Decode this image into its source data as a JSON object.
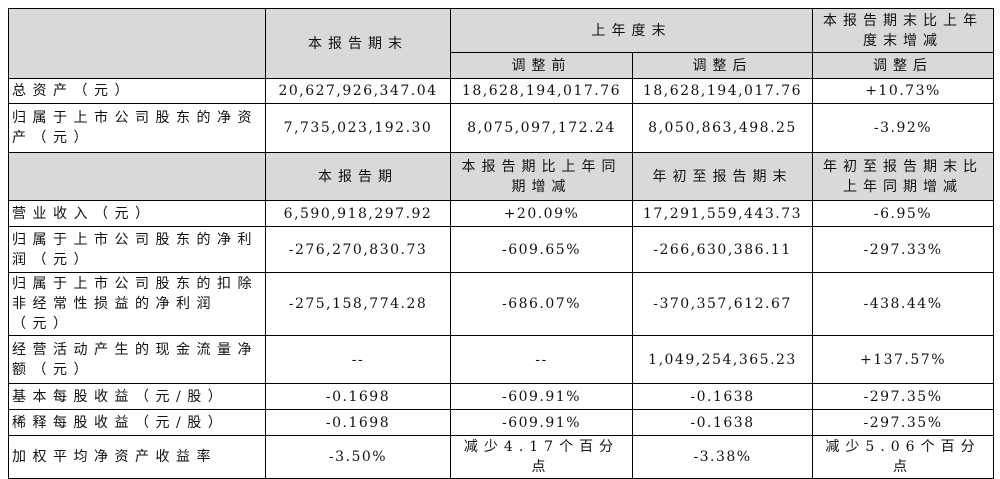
{
  "section1": {
    "col_headers": [
      "本报告期末",
      "上年度末",
      "本报告期末比上年度末增减"
    ],
    "sub_headers": [
      "调整前",
      "调整后",
      "调整后"
    ],
    "rows": [
      [
        "总资产（元）",
        "20,627,926,347.04",
        "18,628,194,017.76",
        "18,628,194,017.76",
        "+10.73%"
      ],
      [
        "归属于上市公司股东的净资产（元）",
        "7,735,023,192.30",
        "8,075,097,172.24",
        "8,050,863,498.25",
        "-3.92%"
      ]
    ]
  },
  "section2": {
    "col_headers": [
      "本报告期",
      "本报告期比上年同期增减",
      "年初至报告期末",
      "年初至报告期末比上年同期增减"
    ],
    "rows": [
      [
        "营业收入（元）",
        "6,590,918,297.92",
        "+20.09%",
        "17,291,559,443.73",
        "-6.95%"
      ],
      [
        "归属于上市公司股东的净利润（元）",
        "-276,270,830.73",
        "-609.65%",
        "-266,630,386.11",
        "-297.33%"
      ],
      [
        "归属于上市公司股东的扣除非经常性损益的净利润（元）",
        "-275,158,774.28",
        "-686.07%",
        "-370,357,612.67",
        "-438.44%"
      ],
      [
        "经营活动产生的现金流量净额（元）",
        "--",
        "--",
        "1,049,254,365.23",
        "+137.57%"
      ],
      [
        "基本每股收益（元/股）",
        "-0.1698",
        "-609.91%",
        "-0.1638",
        "-297.35%"
      ],
      [
        "稀释每股收益（元/股）",
        "-0.1698",
        "-609.91%",
        "-0.1638",
        "-297.35%"
      ],
      [
        "加权平均净资产收益率",
        "-3.50%",
        "减少4.17个百分点",
        "-3.38%",
        "减少5.06个百分点"
      ]
    ]
  }
}
